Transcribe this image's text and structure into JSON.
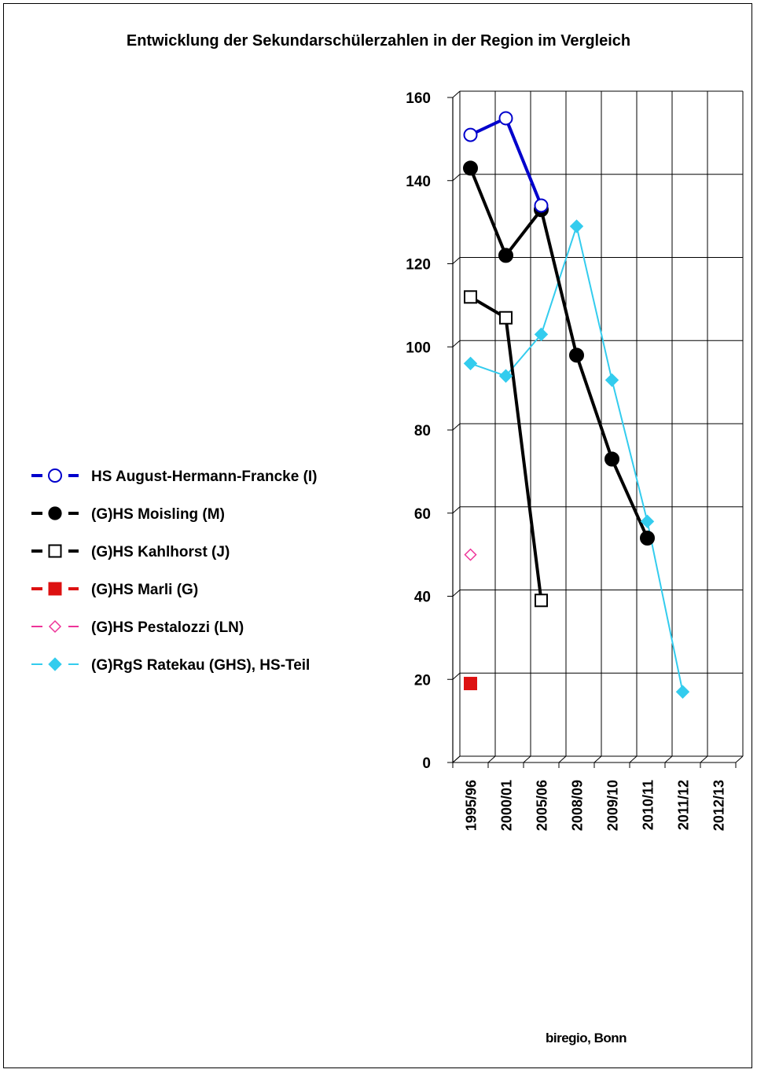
{
  "chart_data": {
    "type": "line",
    "title": "Entwicklung der Sekundarschülerzahlen in der Region im Vergleich",
    "categories": [
      "1995/96",
      "2000/01",
      "2005/06",
      "2008/09",
      "2009/10",
      "2010/11",
      "2011/12",
      "2012/13"
    ],
    "ylim": [
      0,
      160
    ],
    "yticks": [
      0,
      20,
      40,
      60,
      80,
      100,
      120,
      140,
      160
    ],
    "grid": true,
    "legend_position": "left",
    "source_note": "biregio, Bonn",
    "series": [
      {
        "name": "HS August-Hermann-Francke (I)",
        "color": "#0000cc",
        "marker": "circle-open",
        "line_width": 4,
        "values": [
          151,
          155,
          134,
          null,
          null,
          null,
          null,
          null
        ]
      },
      {
        "name": "(G)HS Moisling (M)",
        "color": "#000000",
        "marker": "circle-filled",
        "line_width": 4,
        "values": [
          143,
          122,
          133,
          98,
          73,
          54,
          null,
          null
        ]
      },
      {
        "name": "(G)HS Kahlhorst (J)",
        "color": "#000000",
        "marker": "square-open",
        "line_width": 4,
        "values": [
          112,
          107,
          39,
          null,
          null,
          null,
          null,
          null
        ]
      },
      {
        "name": "(G)HS Marli (G)",
        "color": "#dd1111",
        "marker": "square-filled",
        "line_width": 4,
        "values": [
          19,
          null,
          null,
          null,
          null,
          null,
          null,
          null
        ]
      },
      {
        "name": "(G)HS Pestalozzi (LN)",
        "color": "#ee3399",
        "marker": "diamond-open",
        "line_width": 2,
        "values": [
          50,
          null,
          null,
          null,
          null,
          null,
          null,
          null
        ]
      },
      {
        "name": "(G)RgS Ratekau (GHS), HS-Teil",
        "color": "#33ccee",
        "marker": "diamond-filled",
        "line_width": 2,
        "values": [
          96,
          93,
          103,
          129,
          92,
          58,
          17,
          null
        ]
      }
    ]
  }
}
